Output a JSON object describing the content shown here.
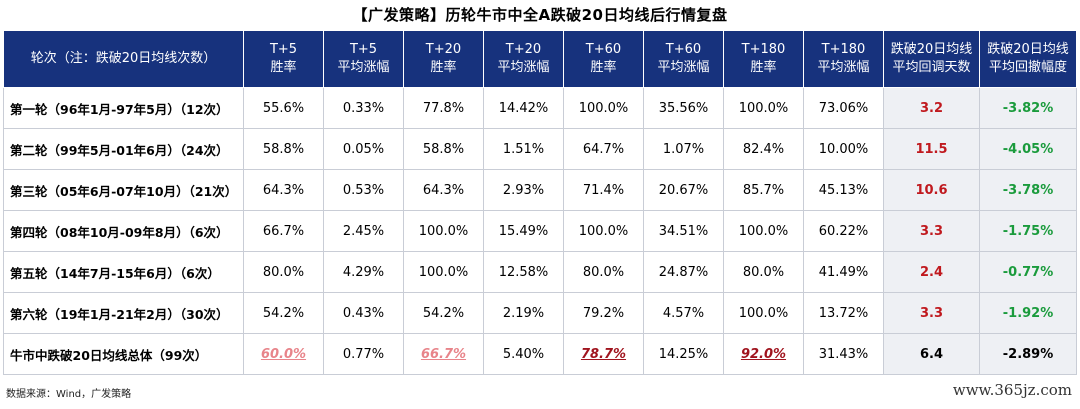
{
  "title": "【广发策略】历轮牛市中全A跌破20日均线后行情复盘",
  "header": {
    "round_col": "轮次（注：跌破20日均线次数）",
    "cols": [
      {
        "line1": "T+5",
        "line2": "胜率"
      },
      {
        "line1": "T+5",
        "line2": "平均涨幅"
      },
      {
        "line1": "T+20",
        "line2": "胜率"
      },
      {
        "line1": "T+20",
        "line2": "平均涨幅"
      },
      {
        "line1": "T+60",
        "line2": "胜率"
      },
      {
        "line1": "T+60",
        "line2": "平均涨幅"
      },
      {
        "line1": "T+180",
        "line2": "胜率"
      },
      {
        "line1": "T+180",
        "line2": "平均涨幅"
      },
      {
        "line1": "跌破20日均线",
        "line2": "平均回调天数"
      },
      {
        "line1": "跌破20日均线",
        "line2": "平均回撤幅度"
      }
    ]
  },
  "rows": [
    {
      "round": "第一轮（96年1月-97年5月）（12次）",
      "values": [
        "55.6%",
        "0.33%",
        "77.8%",
        "14.42%",
        "100.0%",
        "35.56%",
        "100.0%",
        "73.06%",
        "3.2",
        "-3.82%"
      ]
    },
    {
      "round": "第二轮（99年5月-01年6月）（24次）",
      "values": [
        "58.8%",
        "0.05%",
        "58.8%",
        "1.51%",
        "64.7%",
        "1.07%",
        "82.4%",
        "10.00%",
        "11.5",
        "-4.05%"
      ]
    },
    {
      "round": "第三轮（05年6月-07年10月）（21次）",
      "values": [
        "64.3%",
        "0.53%",
        "64.3%",
        "2.93%",
        "71.4%",
        "20.67%",
        "85.7%",
        "45.13%",
        "10.6",
        "-3.78%"
      ]
    },
    {
      "round": "第四轮（08年10月-09年8月）（6次）",
      "values": [
        "66.7%",
        "2.45%",
        "100.0%",
        "15.49%",
        "100.0%",
        "34.51%",
        "100.0%",
        "60.22%",
        "3.3",
        "-1.75%"
      ]
    },
    {
      "round": "第五轮（14年7月-15年6月）（6次）",
      "values": [
        "80.0%",
        "4.29%",
        "100.0%",
        "12.58%",
        "80.0%",
        "24.87%",
        "80.0%",
        "41.49%",
        "2.4",
        "-0.77%"
      ]
    },
    {
      "round": "第六轮（19年1月-21年2月）（30次）",
      "values": [
        "54.2%",
        "0.43%",
        "54.2%",
        "2.19%",
        "79.2%",
        "4.57%",
        "100.0%",
        "13.72%",
        "3.3",
        "-1.92%"
      ]
    }
  ],
  "total": {
    "round": "牛市中跌破20日均线总体（99次）",
    "values": [
      "60.0%",
      "0.77%",
      "66.7%",
      "5.40%",
      "78.7%",
      "14.25%",
      "92.0%",
      "31.43%",
      "6.4",
      "-2.89%"
    ]
  },
  "colors": {
    "header_bg": "#17327d",
    "red": "#c0191e",
    "green": "#1a9b3c",
    "highlight_pink": "#e8848a",
    "highlight_dark": "#a0141e"
  },
  "source": "数据来源：Wind，广发策略",
  "watermark": "www.365jz.com"
}
